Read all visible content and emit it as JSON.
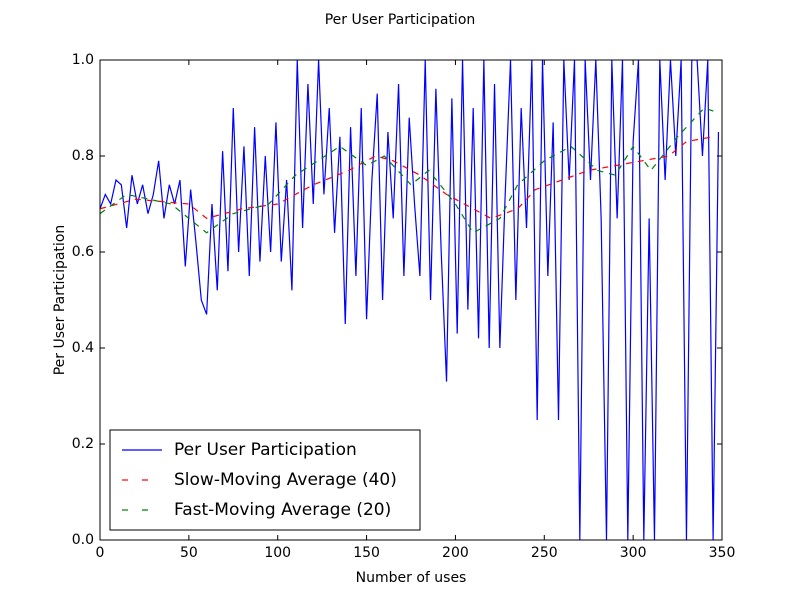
{
  "chart_data": {
    "type": "line",
    "title": "Per User Participation",
    "x_label": "Number of uses",
    "y_label": "Per User Participation",
    "xlim": [
      0,
      350
    ],
    "ylim": [
      0,
      1
    ],
    "xticks": [
      0,
      50,
      100,
      150,
      200,
      250,
      300,
      350
    ],
    "yticks": [
      {
        "value": 0,
        "label": "0.0"
      },
      0.2,
      0.4,
      0.6,
      0.8,
      {
        "value": 1,
        "label": "1.0"
      }
    ],
    "legend": "lower left",
    "series": [
      {
        "name": "Per User Participation",
        "color": "#0000ff",
        "style": "solid",
        "x": [
          0,
          3,
          6,
          9,
          12,
          15,
          18,
          21,
          24,
          27,
          30,
          33,
          36,
          39,
          42,
          45,
          48,
          51,
          54,
          57,
          60,
          63,
          66,
          69,
          72,
          75,
          78,
          81,
          84,
          87,
          90,
          93,
          96,
          99,
          102,
          105,
          108,
          111,
          114,
          117,
          120,
          123,
          126,
          129,
          132,
          135,
          138,
          141,
          144,
          147,
          150,
          153,
          156,
          159,
          162,
          165,
          168,
          171,
          174,
          177,
          180,
          183,
          186,
          189,
          192,
          195,
          198,
          201,
          204,
          207,
          210,
          213,
          216,
          219,
          222,
          225,
          228,
          231,
          234,
          237,
          240,
          243,
          246,
          249,
          252,
          255,
          258,
          261,
          264,
          267,
          270,
          273,
          276,
          279,
          282,
          285,
          288,
          291,
          294,
          297,
          300,
          303,
          306,
          309,
          312,
          315,
          318,
          321,
          324,
          327,
          330,
          333,
          336,
          339,
          342,
          345,
          348
        ],
        "values": [
          0.69,
          0.72,
          0.7,
          0.75,
          0.74,
          0.65,
          0.76,
          0.7,
          0.74,
          0.68,
          0.72,
          0.79,
          0.67,
          0.74,
          0.7,
          0.75,
          0.57,
          0.73,
          0.62,
          0.5,
          0.47,
          0.7,
          0.52,
          0.81,
          0.56,
          0.9,
          0.6,
          0.82,
          0.55,
          0.86,
          0.58,
          0.8,
          0.6,
          0.87,
          0.58,
          0.75,
          0.52,
          1.0,
          0.65,
          0.95,
          0.7,
          1.0,
          0.72,
          0.9,
          0.64,
          0.84,
          0.45,
          0.86,
          0.55,
          0.9,
          0.46,
          0.75,
          0.93,
          0.5,
          0.85,
          0.67,
          0.95,
          0.55,
          0.88,
          0.7,
          0.55,
          1.0,
          0.5,
          0.94,
          0.6,
          0.33,
          0.92,
          0.43,
          1.0,
          0.48,
          0.9,
          0.42,
          1.0,
          0.4,
          0.95,
          0.4,
          0.72,
          1.0,
          0.5,
          0.9,
          0.65,
          1.0,
          0.25,
          1.0,
          0.55,
          0.87,
          0.25,
          1.0,
          0.75,
          1.0,
          0.0,
          1.0,
          0.75,
          1.0,
          0.67,
          0.0,
          1.0,
          0.67,
          1.0,
          0.0,
          0.83,
          1.0,
          0.0,
          0.67,
          0.0,
          1.0,
          0.75,
          1.0,
          0.8,
          1.0,
          0.0,
          1.0,
          1.0,
          0.8,
          1.0,
          0.0,
          0.85
        ]
      },
      {
        "name": "Slow-Moving Average (40)",
        "color": "#ff0000",
        "style": "dashed",
        "x": [
          0,
          20,
          50,
          60,
          80,
          100,
          120,
          140,
          155,
          165,
          180,
          195,
          205,
          220,
          235,
          245,
          260,
          275,
          290,
          305,
          320,
          330,
          345
        ],
        "values": [
          0.69,
          0.71,
          0.7,
          0.67,
          0.69,
          0.7,
          0.74,
          0.77,
          0.8,
          0.79,
          0.76,
          0.72,
          0.7,
          0.67,
          0.69,
          0.73,
          0.75,
          0.77,
          0.78,
          0.79,
          0.8,
          0.83,
          0.84
        ]
      },
      {
        "name": "Fast-Moving Average (20)",
        "color": "#008000",
        "style": "dashed",
        "x": [
          0,
          15,
          40,
          60,
          75,
          95,
          110,
          135,
          150,
          160,
          175,
          185,
          200,
          210,
          225,
          235,
          250,
          265,
          280,
          290,
          300,
          310,
          325,
          340,
          348
        ],
        "values": [
          0.68,
          0.72,
          0.7,
          0.64,
          0.68,
          0.7,
          0.76,
          0.82,
          0.78,
          0.8,
          0.74,
          0.77,
          0.7,
          0.64,
          0.67,
          0.74,
          0.79,
          0.82,
          0.77,
          0.76,
          0.82,
          0.77,
          0.84,
          0.9,
          0.89
        ]
      }
    ]
  }
}
